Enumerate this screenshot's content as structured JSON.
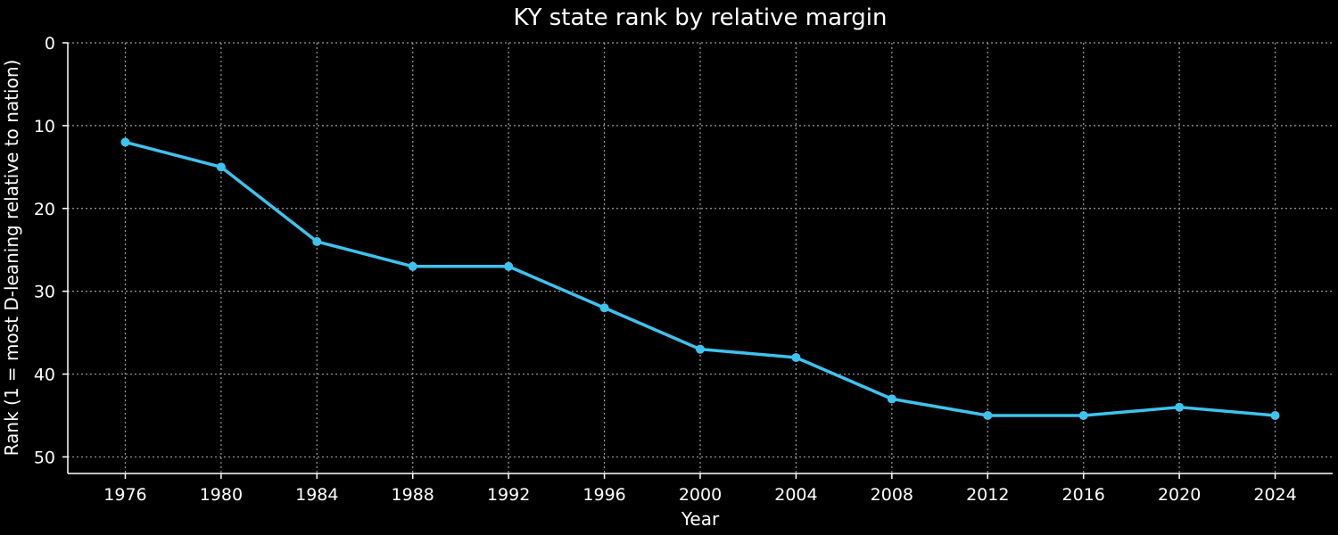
{
  "chart_data": {
    "type": "line",
    "title": "KY state rank by relative margin",
    "xlabel": "Year",
    "ylabel": "Rank (1 = most D-leaning relative to nation)",
    "x": [
      1976,
      1980,
      1984,
      1988,
      1992,
      1996,
      2000,
      2004,
      2008,
      2012,
      2016,
      2020,
      2024
    ],
    "series": [
      {
        "values": [
          12,
          15,
          24,
          27,
          27,
          32,
          37,
          38,
          43,
          45,
          45,
          44,
          45
        ],
        "color": "#3ec3ee"
      }
    ],
    "y_ticks": [
      0,
      10,
      20,
      30,
      40,
      50
    ],
    "ylim": [
      0,
      52
    ],
    "y_inverted": true,
    "xlim": [
      1973.6,
      2026.4
    ],
    "grid": true,
    "background": "#000000",
    "foreground": "#ffffff"
  }
}
